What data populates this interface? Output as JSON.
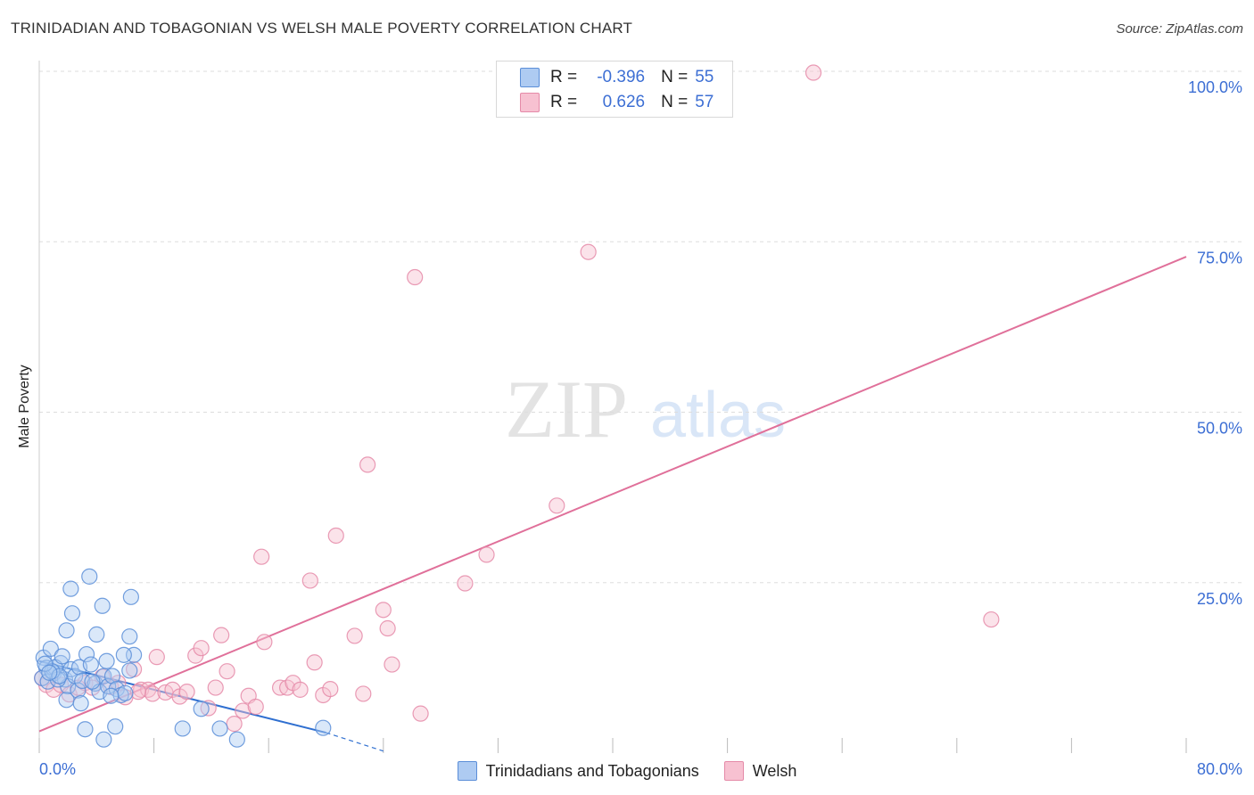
{
  "title": "TRINIDADIAN AND TOBAGONIAN VS WELSH MALE POVERTY CORRELATION CHART",
  "source": "Source: ZipAtlas.com",
  "watermark": {
    "zip": "ZIP",
    "atlas": "atlas"
  },
  "stats": [
    {
      "r_label": "R =",
      "r_value": "-0.396",
      "n_label": "N =",
      "n_value": "55"
    },
    {
      "r_label": "R =",
      "r_value": "0.626",
      "n_label": "N =",
      "n_value": "57"
    }
  ],
  "legend": {
    "series1": "Trinidadians and Tobagonians",
    "series2": "Welsh"
  },
  "colors": {
    "blue_fill": "#aecbf2",
    "blue_stroke": "#5b8ed8",
    "blue_line": "#2f6fd0",
    "pink_fill": "#f7c1d1",
    "pink_stroke": "#e58aa8",
    "pink_line": "#e0709a",
    "axis_text": "#3d6fd4",
    "grid": "#dddddd"
  },
  "chart_data": {
    "type": "scatter",
    "title": "TRINIDADIAN AND TOBAGONIAN VS WELSH MALE POVERTY CORRELATION CHART",
    "xlabel": "",
    "ylabel": "Male Poverty",
    "xlim": [
      0,
      80
    ],
    "ylim": [
      0,
      100
    ],
    "x_ticks": [
      0,
      8,
      16,
      24,
      32,
      40,
      48,
      56,
      64,
      72,
      80
    ],
    "x_tick_labels": {
      "0": "0.0%",
      "80": "80.0%"
    },
    "y_ticks": [
      25,
      50,
      75,
      100
    ],
    "y_tick_labels": [
      "25.0%",
      "50.0%",
      "75.0%",
      "100.0%"
    ],
    "grid": true,
    "legend_position": "bottom",
    "series": [
      {
        "name": "Trinidadians and Tobagonians",
        "color": "#5b8ed8",
        "points": [
          [
            0.3,
            14.0
          ],
          [
            0.5,
            12.5
          ],
          [
            0.8,
            15.3
          ],
          [
            1.0,
            11.7
          ],
          [
            0.2,
            11.0
          ],
          [
            0.6,
            10.5
          ],
          [
            1.5,
            13.2
          ],
          [
            1.1,
            12.6
          ],
          [
            1.8,
            10.8
          ],
          [
            2.0,
            9.8
          ],
          [
            2.2,
            12.3
          ],
          [
            2.5,
            11.3
          ],
          [
            2.8,
            12.6
          ],
          [
            1.3,
            10.8
          ],
          [
            1.9,
            7.8
          ],
          [
            2.7,
            9.2
          ],
          [
            3.0,
            10.6
          ],
          [
            3.3,
            14.5
          ],
          [
            3.6,
            13.0
          ],
          [
            3.9,
            10.2
          ],
          [
            4.2,
            9.0
          ],
          [
            4.5,
            11.3
          ],
          [
            4.8,
            9.8
          ],
          [
            5.1,
            11.3
          ],
          [
            5.4,
            9.4
          ],
          [
            5.7,
            8.5
          ],
          [
            6.0,
            8.8
          ],
          [
            6.3,
            12.1
          ],
          [
            6.6,
            14.4
          ],
          [
            4.0,
            17.4
          ],
          [
            4.4,
            21.6
          ],
          [
            6.3,
            17.1
          ],
          [
            6.4,
            22.9
          ],
          [
            3.5,
            25.9
          ],
          [
            2.2,
            24.1
          ],
          [
            2.3,
            20.5
          ],
          [
            1.9,
            18.0
          ],
          [
            4.7,
            13.5
          ],
          [
            5.9,
            14.4
          ],
          [
            0.9,
            12.0
          ],
          [
            1.4,
            11.3
          ],
          [
            2.9,
            7.3
          ],
          [
            3.2,
            3.5
          ],
          [
            4.5,
            2.0
          ],
          [
            5.3,
            3.9
          ],
          [
            10.0,
            3.6
          ],
          [
            11.3,
            6.5
          ],
          [
            12.6,
            3.6
          ],
          [
            13.8,
            2.0
          ],
          [
            19.8,
            3.7
          ],
          [
            0.4,
            13.1
          ],
          [
            1.6,
            14.2
          ],
          [
            0.7,
            11.8
          ],
          [
            3.7,
            10.5
          ],
          [
            5.0,
            8.4
          ]
        ],
        "trend": {
          "x0": 0,
          "y0": 13.5,
          "x1": 20,
          "y1": 3.0,
          "dash_x1": 24,
          "dash_y1": 0.3
        }
      },
      {
        "name": "Welsh",
        "color": "#e58aa8",
        "points": [
          [
            0.5,
            10.0
          ],
          [
            1.0,
            9.3
          ],
          [
            1.5,
            10.0
          ],
          [
            2.1,
            8.6
          ],
          [
            2.7,
            9.6
          ],
          [
            3.2,
            10.3
          ],
          [
            3.7,
            9.6
          ],
          [
            4.4,
            11.2
          ],
          [
            5.0,
            9.7
          ],
          [
            5.5,
            10.3
          ],
          [
            6.0,
            8.2
          ],
          [
            6.6,
            12.3
          ],
          [
            7.1,
            9.3
          ],
          [
            7.6,
            9.3
          ],
          [
            7.9,
            8.7
          ],
          [
            8.2,
            14.1
          ],
          [
            8.8,
            8.9
          ],
          [
            9.3,
            9.3
          ],
          [
            9.8,
            8.3
          ],
          [
            10.3,
            9.0
          ],
          [
            10.9,
            14.3
          ],
          [
            11.3,
            15.4
          ],
          [
            11.8,
            6.6
          ],
          [
            12.3,
            9.6
          ],
          [
            12.7,
            17.3
          ],
          [
            13.1,
            12.0
          ],
          [
            13.6,
            4.3
          ],
          [
            14.2,
            6.2
          ],
          [
            14.6,
            8.4
          ],
          [
            15.1,
            6.8
          ],
          [
            15.5,
            28.8
          ],
          [
            15.7,
            16.3
          ],
          [
            16.8,
            9.6
          ],
          [
            17.3,
            9.6
          ],
          [
            17.7,
            10.3
          ],
          [
            18.2,
            9.3
          ],
          [
            18.9,
            25.3
          ],
          [
            19.2,
            13.3
          ],
          [
            19.8,
            8.5
          ],
          [
            20.3,
            9.4
          ],
          [
            20.7,
            31.9
          ],
          [
            22.0,
            17.2
          ],
          [
            22.6,
            8.7
          ],
          [
            22.9,
            42.3
          ],
          [
            24.0,
            21.0
          ],
          [
            24.3,
            18.3
          ],
          [
            24.6,
            13.0
          ],
          [
            26.2,
            69.8
          ],
          [
            26.6,
            5.8
          ],
          [
            29.7,
            24.9
          ],
          [
            31.2,
            29.1
          ],
          [
            36.1,
            36.3
          ],
          [
            38.3,
            73.5
          ],
          [
            54.0,
            99.8
          ],
          [
            66.4,
            19.6
          ],
          [
            0.2,
            11.0
          ],
          [
            6.9,
            9.0
          ]
        ],
        "trend": {
          "x0": 0,
          "y0": 3.2,
          "x1": 80,
          "y1": 72.8
        }
      }
    ]
  }
}
